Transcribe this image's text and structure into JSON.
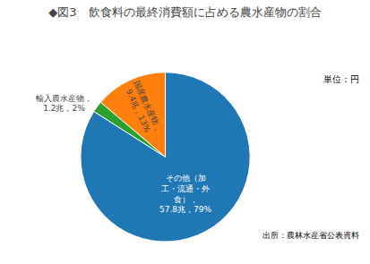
{
  "chart_data": {
    "type": "pie",
    "title": "◆図3　飲食料の最終消費額に占める農水産物の割合",
    "values": [
      79,
      13,
      2
    ],
    "value_labels": [
      "その他（加\n工・流通・外\n食），\n57.8兆，79%",
      "国産農水産物，\n9.4兆，13%",
      "輸入農水産物，\n1.2兆，2%"
    ],
    "annotations": [
      "単位：円",
      "出所：農林水産省公表資料"
    ],
    "data_labels": true
  }
}
